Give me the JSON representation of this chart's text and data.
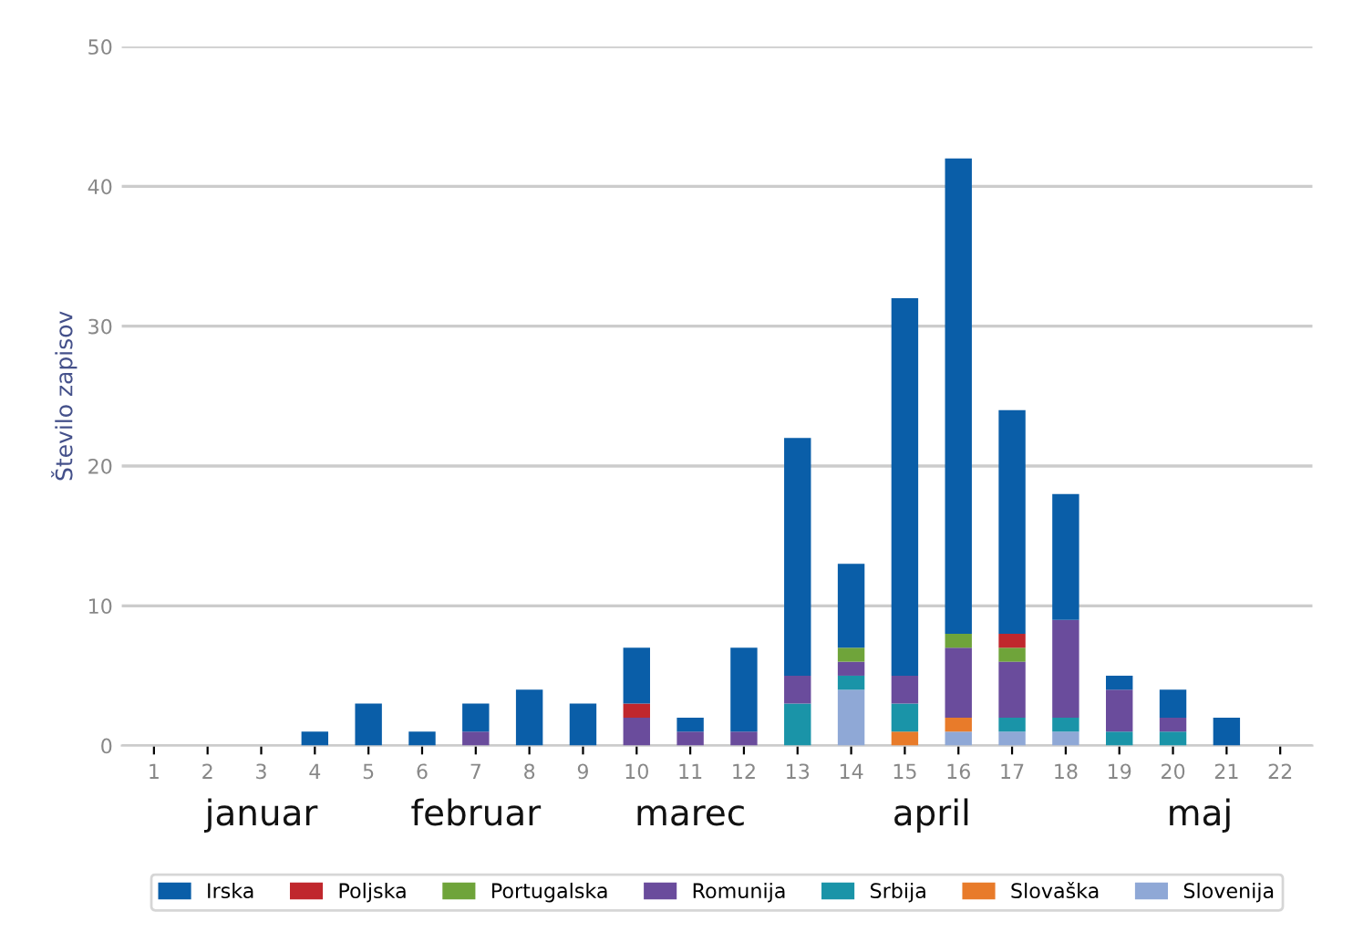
{
  "chart_data": {
    "type": "bar",
    "stacked": true,
    "ylabel": "Število zapisov",
    "categories": [
      "1",
      "2",
      "3",
      "4",
      "5",
      "6",
      "7",
      "8",
      "9",
      "10",
      "11",
      "12",
      "13",
      "14",
      "15",
      "16",
      "17",
      "18",
      "19",
      "20",
      "21",
      "22"
    ],
    "series": [
      {
        "name": "Slovenija",
        "color": "#8fa8d6",
        "values": [
          0,
          0,
          0,
          0,
          0,
          0,
          0,
          0,
          0,
          0,
          0,
          0,
          0,
          4,
          0,
          1,
          1,
          1,
          0,
          0,
          0,
          0
        ]
      },
      {
        "name": "Slovaška",
        "color": "#e87b2a",
        "values": [
          0,
          0,
          0,
          0,
          0,
          0,
          0,
          0,
          0,
          0,
          0,
          0,
          0,
          0,
          1,
          1,
          0,
          0,
          0,
          0,
          0,
          0
        ]
      },
      {
        "name": "Srbija",
        "color": "#1a94a8",
        "values": [
          0,
          0,
          0,
          0,
          0,
          0,
          0,
          0,
          0,
          0,
          0,
          0,
          3,
          1,
          2,
          0,
          1,
          1,
          1,
          1,
          0,
          0
        ]
      },
      {
        "name": "Romunija",
        "color": "#6a4c9c",
        "values": [
          0,
          0,
          0,
          0,
          0,
          0,
          1,
          0,
          0,
          2,
          1,
          1,
          2,
          1,
          2,
          5,
          4,
          7,
          3,
          1,
          0,
          0
        ]
      },
      {
        "name": "Portugalska",
        "color": "#6fa43a",
        "values": [
          0,
          0,
          0,
          0,
          0,
          0,
          0,
          0,
          0,
          0,
          0,
          0,
          0,
          1,
          0,
          1,
          1,
          0,
          0,
          0,
          0,
          0
        ]
      },
      {
        "name": "Poljska",
        "color": "#c0272d",
        "values": [
          0,
          0,
          0,
          0,
          0,
          0,
          0,
          0,
          0,
          1,
          0,
          0,
          0,
          0,
          0,
          0,
          1,
          0,
          0,
          0,
          0,
          0
        ]
      },
      {
        "name": "Irska",
        "color": "#0a5ea8",
        "values": [
          0,
          0,
          0,
          1,
          3,
          1,
          2,
          4,
          3,
          4,
          1,
          6,
          17,
          6,
          27,
          34,
          16,
          9,
          1,
          2,
          2,
          0
        ]
      }
    ],
    "ylim": [
      0,
      50
    ],
    "yticks": [
      0,
      10,
      20,
      30,
      40,
      50
    ],
    "grid": "y",
    "legend": "bottom",
    "annotations": [
      "januar",
      "februar",
      "marec",
      "april",
      "maj"
    ]
  }
}
